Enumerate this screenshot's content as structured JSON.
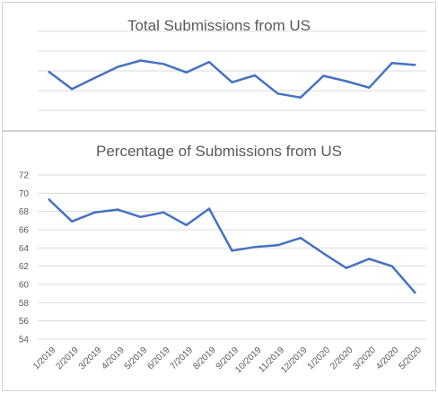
{
  "chart_data": [
    {
      "type": "line",
      "title": "Total Submissions from US",
      "categories": [
        "1/2019",
        "2/2019",
        "3/2019",
        "4/2019",
        "5/2019",
        "6/2019",
        "7/2019",
        "8/2019",
        "9/2019",
        "10/2019",
        "11/2019",
        "12/2019",
        "1/2020",
        "2/2020",
        "3/2020",
        "4/2020",
        "5/2020"
      ],
      "values": [
        3.9,
        2.15,
        3.3,
        4.4,
        5.05,
        4.7,
        3.85,
        4.9,
        2.85,
        3.55,
        1.7,
        1.3,
        3.5,
        2.95,
        2.3,
        4.8,
        4.6
      ],
      "ylim": [
        -2,
        8
      ],
      "grid": true,
      "y_tick_labels_visible": false,
      "x_tick_labels_visible": false,
      "color": "#4472C4"
    },
    {
      "type": "line",
      "title": "Percentage of Submissions from US",
      "categories": [
        "1/2019",
        "2/2019",
        "3/2019",
        "4/2019",
        "5/2019",
        "6/2019",
        "7/2019",
        "8/2019",
        "9/2019",
        "10/2019",
        "11/2019",
        "12/2019",
        "1/2020",
        "2/2020",
        "3/2020",
        "4/2020",
        "5/2020"
      ],
      "values": [
        69.3,
        66.9,
        67.9,
        68.2,
        67.4,
        67.9,
        66.5,
        68.3,
        63.7,
        64.1,
        64.3,
        65.1,
        63.4,
        61.8,
        62.8,
        62.0,
        59.1
      ],
      "ylim": [
        54,
        72
      ],
      "yticks": [
        54,
        56,
        58,
        60,
        62,
        64,
        66,
        68,
        70,
        72
      ],
      "grid": true,
      "color": "#4472C4"
    }
  ]
}
